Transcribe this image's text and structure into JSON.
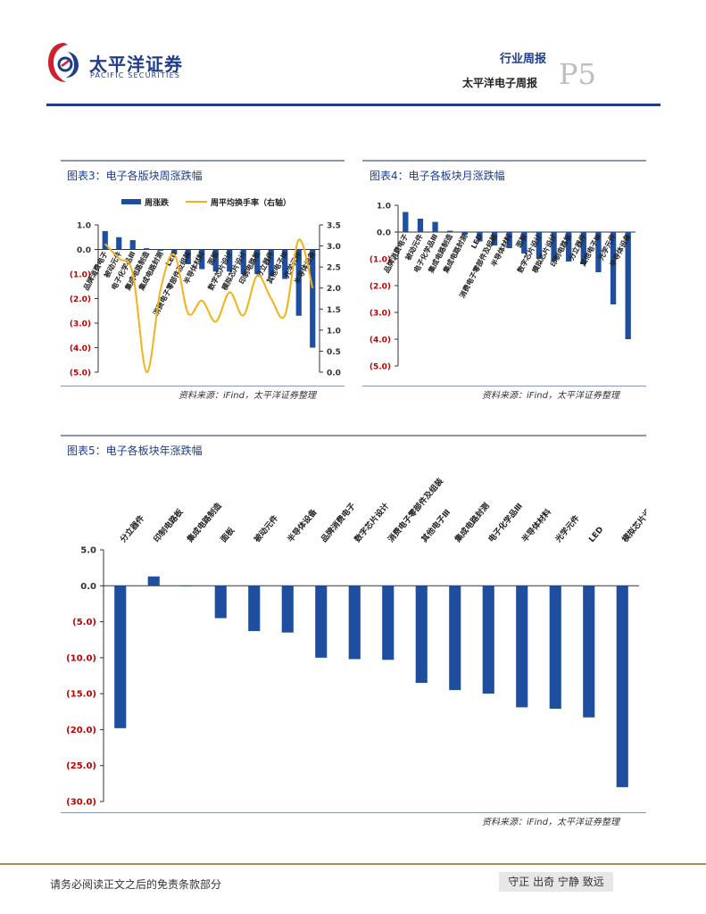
{
  "header": {
    "brand_cn": "太平洋证券",
    "brand_en": "PACIFIC SECURITIES",
    "report_type": "行业周报",
    "report_name": "太平洋电子周报",
    "page_no": "P5"
  },
  "figures": [
    {
      "title": "图表3：电子各版块周涨跌幅",
      "source": "资料来源：iFind，太平洋证券整理",
      "chart_data": {
        "type": "bar",
        "title": "",
        "categories": [
          "品牌消费电子",
          "被动元件",
          "电子化学品Ⅲ",
          "集成电路制造",
          "集成电路封测",
          "LED",
          "消费电子零部件及组装",
          "半导体材料",
          "面板",
          "数字芯片设计",
          "模拟芯片设计",
          "印制电路板",
          "分立器件",
          "其他电子Ⅲ",
          "光学元件",
          "半导体设备"
        ],
        "series": [
          {
            "name": "周涨跌",
            "type": "bar",
            "axis": "left",
            "values": [
              0.75,
              0.5,
              0.38,
              0.05,
              -0.05,
              -0.2,
              -0.6,
              -0.8,
              -0.9,
              -0.9,
              -1.0,
              -1.0,
              -1.1,
              -1.2,
              -2.7,
              -4.0
            ]
          },
          {
            "name": "周平均换手率（右轴）",
            "type": "line",
            "axis": "right",
            "values": [
              3.05,
              2.7,
              2.35,
              0.0,
              1.95,
              2.8,
              1.4,
              1.7,
              1.2,
              1.9,
              1.35,
              2.3,
              1.75,
              1.35,
              3.15,
              2.0
            ]
          }
        ],
        "ylim": [
          -5.0,
          1.0
        ],
        "y_ticks": [
          "1.0",
          "0.0",
          "(1.0)",
          "(2.0)",
          "(3.0)",
          "(4.0)",
          "(5.0)"
        ],
        "y2lim": [
          0.0,
          3.5
        ],
        "y2_ticks": [
          "3.5",
          "3.0",
          "2.5",
          "2.0",
          "1.5",
          "1.0",
          "0.5",
          "0.0"
        ],
        "legend": "top",
        "colors": {
          "bar": "#1f4e9e",
          "line": "#f2b21a",
          "neg_tick": "#c00000"
        }
      }
    },
    {
      "title": "图表4：电子各板块月涨跌幅",
      "source": "资料来源：iFind，太平洋证券整理",
      "chart_data": {
        "type": "bar",
        "title": "",
        "categories": [
          "品牌消费电子",
          "被动元件",
          "电子化学品Ⅲ",
          "集成电路制造",
          "集成电路封测",
          "LED",
          "消费电子零部件及组装",
          "半导体材料",
          "面板",
          "数字芯片设计",
          "模拟芯片设计",
          "印制电路板",
          "分立器件",
          "其他电子Ⅲ",
          "光学元件",
          "半导体设备"
        ],
        "series": [
          {
            "name": "",
            "values": [
              0.75,
              0.5,
              0.38,
              0.05,
              -0.1,
              -0.35,
              -0.5,
              -0.6,
              -0.8,
              -1.0,
              -1.1,
              -1.1,
              -1.2,
              -1.5,
              -2.7,
              -4.0
            ]
          }
        ],
        "ylim": [
          -5.0,
          1.0
        ],
        "y_ticks": [
          "1.0",
          "0.0",
          "(1.0)",
          "(2.0)",
          "(3.0)",
          "(4.0)",
          "(5.0)"
        ],
        "colors": {
          "bar": "#1f4e9e",
          "neg_tick": "#c00000"
        }
      }
    },
    {
      "title": "图表5：电子各板块年涨跌幅",
      "source": "资料来源：iFind，太平洋证券整理",
      "chart_data": {
        "type": "bar",
        "title": "",
        "categories": [
          "分立器件",
          "印制电路板",
          "集成电路制造",
          "面板",
          "被动元件",
          "半导体设备",
          "品牌消费电子",
          "数字芯片设计",
          "消费电子零部件及组装",
          "其他电子Ⅲ",
          "集成电路封测",
          "电子化学品Ⅲ",
          "半导体材料",
          "光学元件",
          "LED",
          "模拟芯片设计"
        ],
        "series": [
          {
            "name": "",
            "values": [
              -19.8,
              1.3,
              0.0,
              -4.5,
              -6.3,
              -6.5,
              -10.0,
              -10.2,
              -10.3,
              -13.5,
              -14.5,
              -15.0,
              -16.9,
              -17.1,
              -18.3,
              -28.0
            ]
          }
        ],
        "ylim": [
          -30.0,
          5.0
        ],
        "y_ticks": [
          "5.0",
          "0.0",
          "(5.0)",
          "(10.0)",
          "(15.0)",
          "(20.0)",
          "(25.0)",
          "(30.0)"
        ],
        "colors": {
          "bar": "#1f4e9e",
          "neg_tick": "#c00000"
        }
      }
    }
  ],
  "footer": {
    "disclaimer": "请务必阅读正文之后的免责条款部分",
    "motto": "守正 出奇 宁静 致远"
  }
}
